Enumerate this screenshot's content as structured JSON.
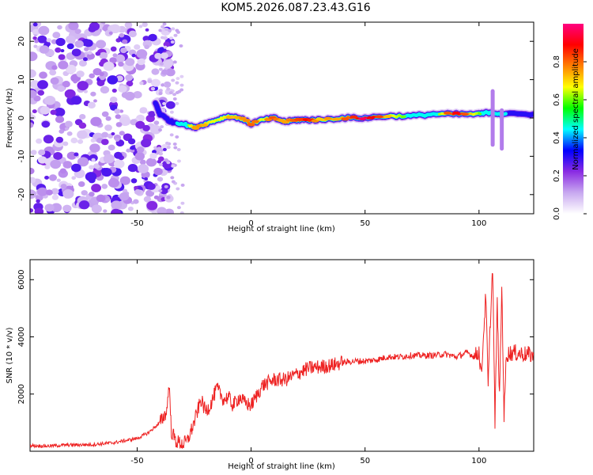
{
  "title": "KOM5.2026.087.23.43.G16",
  "chart_data": [
    {
      "type": "heatmap",
      "name": "spectrogram",
      "xlabel": "Height of straight line (km)",
      "ylabel": "Frequency (Hz)",
      "xlim": [
        -97,
        124
      ],
      "ylim": [
        -25,
        25
      ],
      "xticks": [
        -50,
        0,
        50,
        100
      ],
      "yticks": [
        -20,
        -10,
        0,
        10,
        20
      ],
      "colorbar": {
        "label": "Normalized spectral amplitude",
        "range": [
          0,
          1
        ],
        "ticks": [
          "0.0",
          "0.2",
          "0.4",
          "0.6",
          "0.8"
        ],
        "tick_values": [
          0.0,
          0.2,
          0.4,
          0.6,
          0.8
        ],
        "colors": [
          "#ffffff",
          "#c8a8f0",
          "#8a2be2",
          "#0000ff",
          "#00ffff",
          "#00ff00",
          "#ffff00",
          "#ff8000",
          "#ff0000",
          "#ff0080"
        ]
      },
      "ridge": {
        "x": [
          -42,
          -40,
          -35,
          -30,
          -25,
          -20,
          -15,
          -10,
          -5,
          0,
          5,
          10,
          15,
          20,
          25,
          30,
          40,
          50,
          60,
          70,
          80,
          90,
          100,
          105,
          110,
          124
        ],
        "y": [
          4,
          1,
          -1,
          -1.5,
          -2.5,
          -1.5,
          -0.5,
          0.5,
          0,
          -1.5,
          -0.5,
          0,
          -1,
          -0.5,
          -0.5,
          -0.5,
          0,
          0,
          0.5,
          0.5,
          1,
          1,
          1,
          1.5,
          1,
          1
        ],
        "amplitude": [
          0.35,
          0.3,
          0.4,
          0.5,
          0.75,
          0.7,
          0.65,
          0.7,
          0.7,
          0.8,
          0.65,
          0.8,
          0.7,
          0.8,
          0.85,
          0.7,
          0.75,
          0.95,
          0.7,
          0.55,
          0.55,
          0.9,
          0.6,
          0.5,
          0.45,
          0.3
        ]
      }
    },
    {
      "type": "line",
      "name": "snr",
      "xlabel": "Height of straight line (km)",
      "ylabel": "SNR (10 * v/v)",
      "xlim": [
        -97,
        124
      ],
      "ylim": [
        0,
        6700
      ],
      "xticks": [
        -50,
        0,
        50,
        100
      ],
      "yticks": [
        2000,
        4000,
        6000
      ],
      "color": "#ee2222",
      "x": [
        -97,
        -90,
        -80,
        -70,
        -60,
        -50,
        -45,
        -40,
        -37,
        -36,
        -35,
        -33,
        -30,
        -28,
        -25,
        -22,
        -20,
        -18,
        -15,
        -12,
        -10,
        -8,
        -5,
        -3,
        0,
        5,
        10,
        15,
        20,
        25,
        30,
        35,
        40,
        45,
        50,
        55,
        60,
        65,
        70,
        75,
        80,
        85,
        90,
        95,
        98,
        100,
        101,
        102,
        103,
        104,
        105,
        106,
        107,
        108,
        109,
        110,
        111,
        112,
        115,
        120,
        124
      ],
      "y": [
        200,
        180,
        220,
        230,
        300,
        450,
        650,
        1000,
        1400,
        2400,
        700,
        350,
        250,
        350,
        1000,
        1800,
        1400,
        1600,
        2200,
        1800,
        1900,
        1600,
        1900,
        1700,
        1600,
        2300,
        2500,
        2500,
        2700,
        2900,
        2950,
        3000,
        3100,
        3150,
        3150,
        3200,
        3300,
        3300,
        3350,
        3350,
        3350,
        3400,
        3300,
        3450,
        3300,
        3500,
        2600,
        4100,
        5500,
        2200,
        4600,
        6500,
        1000,
        5200,
        1800,
        5800,
        1200,
        3400,
        3450,
        3400,
        3350
      ]
    }
  ]
}
